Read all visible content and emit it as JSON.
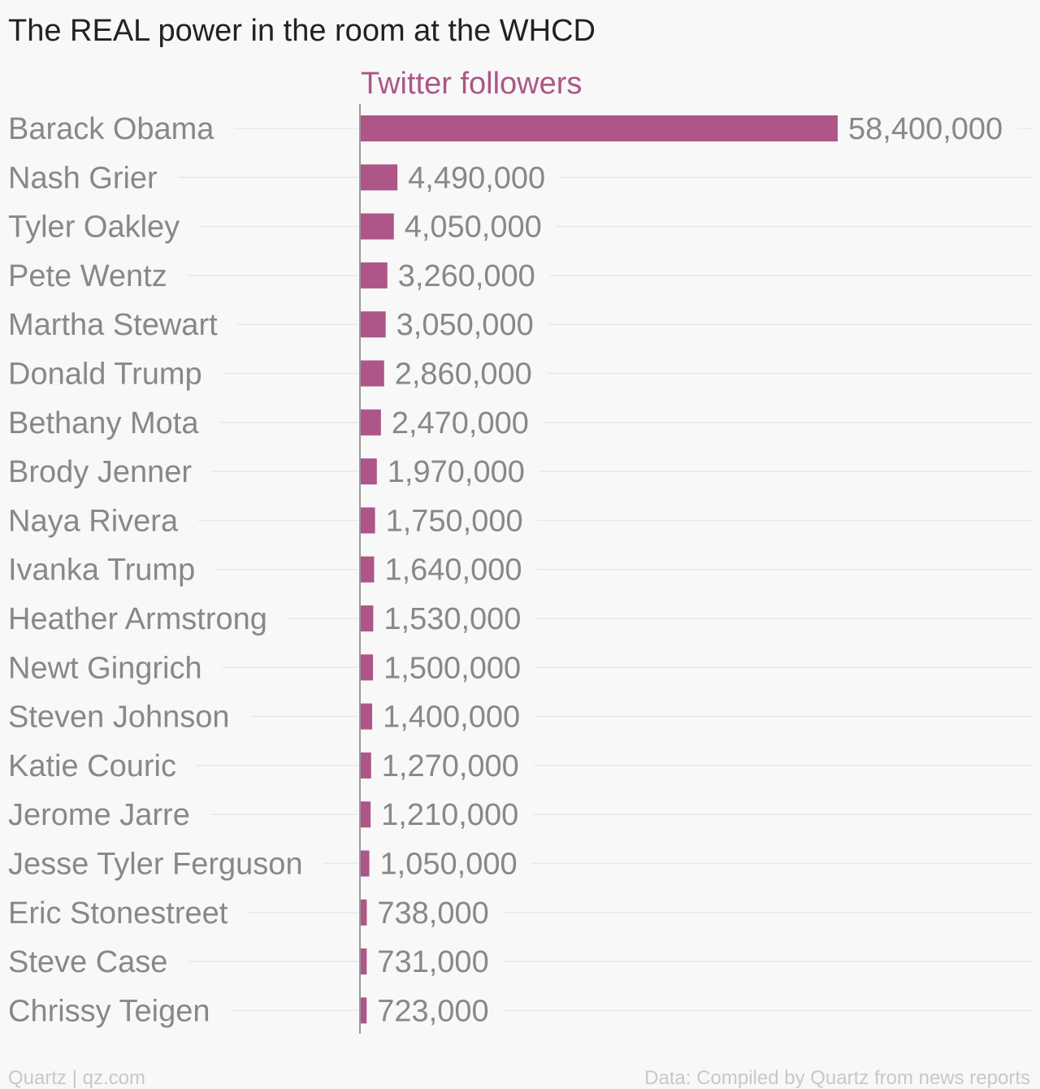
{
  "title": "The REAL power in the room at the WHCD",
  "footer": {
    "left": "Quartz | qz.com",
    "right": "Data: Compiled by Quartz from news reports"
  },
  "colors": {
    "bar": "#ad5687",
    "text": "#888888",
    "title": "#222222",
    "grid": "#e8e8e8",
    "axis": "#999999",
    "footer": "#c8c8c8",
    "background": "#f8f8f8"
  },
  "chart_data": {
    "type": "bar",
    "orientation": "horizontal",
    "title": "The REAL power in the room at the WHCD",
    "series": [
      {
        "name": "Twitter followers",
        "values": [
          58400000,
          4490000,
          4050000,
          3260000,
          3050000,
          2860000,
          2470000,
          1970000,
          1750000,
          1640000,
          1530000,
          1500000,
          1400000,
          1270000,
          1210000,
          1050000,
          738000,
          731000,
          723000
        ],
        "labels": [
          "58,400,000",
          "4,490,000",
          "4,050,000",
          "3,260,000",
          "3,050,000",
          "2,860,000",
          "2,470,000",
          "1,970,000",
          "1,750,000",
          "1,640,000",
          "1,530,000",
          "1,500,000",
          "1,400,000",
          "1,270,000",
          "1,210,000",
          "1,050,000",
          "738,000",
          "731,000",
          "723,000"
        ]
      }
    ],
    "categories": [
      "Barack Obama",
      "Nash Grier",
      "Tyler Oakley",
      "Pete Wentz",
      "Martha Stewart",
      "Donald Trump",
      "Bethany Mota",
      "Brody Jenner",
      "Naya Rivera",
      "Ivanka Trump",
      "Heather Armstrong",
      "Newt Gingrich",
      "Steven Johnson",
      "Katie Couric",
      "Jerome Jarre",
      "Jesse Tyler Ferguson",
      "Eric Stonestreet",
      "Steve Case",
      "Chrissy Teigen"
    ],
    "xlim": [
      0,
      58400000
    ],
    "grid": true,
    "legend": "none"
  }
}
